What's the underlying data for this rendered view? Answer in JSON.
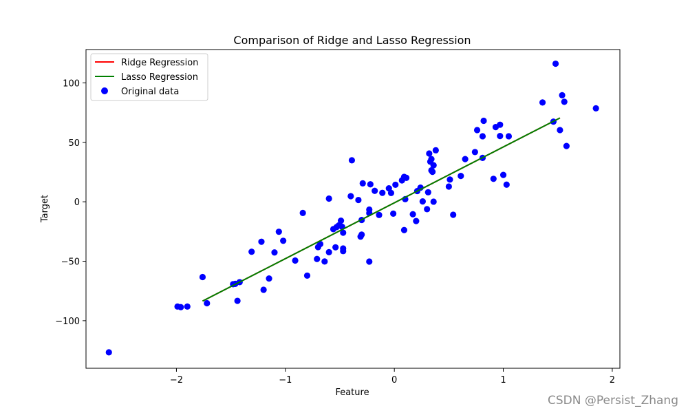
{
  "chart_data": {
    "type": "scatter",
    "title": "Comparison of Ridge and Lasso Regression",
    "xlabel": "Feature",
    "ylabel": "Target",
    "xlim": [
      -2.83,
      2.07
    ],
    "ylim": [
      -140,
      128
    ],
    "xticks": [
      -2,
      -1,
      0,
      1,
      2
    ],
    "xtick_labels": [
      "−2",
      "−1",
      "0",
      "1",
      "2"
    ],
    "yticks": [
      -100,
      -50,
      0,
      50,
      100
    ],
    "ytick_labels": [
      "−100",
      "−50",
      "0",
      "50",
      "100"
    ],
    "grid": false,
    "legend_position": "top-left",
    "series": [
      {
        "name": "Ridge Regression",
        "kind": "line",
        "color": "#ff0000",
        "x": [
          -1.76,
          1.52
        ],
        "y": [
          -83.5,
          70.5
        ]
      },
      {
        "name": "Lasso Regression",
        "kind": "line",
        "color": "#008000",
        "x": [
          -1.76,
          1.52
        ],
        "y": [
          -83.5,
          70.5
        ]
      },
      {
        "name": "Original data",
        "kind": "scatter",
        "color": "#0000ff",
        "points": [
          [
            -2.62,
            -126.6
          ],
          [
            -1.99,
            -88.1
          ],
          [
            -1.96,
            -88.6
          ],
          [
            -1.9,
            -88.1
          ],
          [
            -1.76,
            -63.3
          ],
          [
            -1.72,
            -85.3
          ],
          [
            -1.48,
            -69.3
          ],
          [
            -1.46,
            -69.0
          ],
          [
            -1.44,
            -83.3
          ],
          [
            -1.42,
            -67.6
          ],
          [
            -1.31,
            -42.0
          ],
          [
            -1.22,
            -33.6
          ],
          [
            -1.2,
            -74.0
          ],
          [
            -1.15,
            -64.5
          ],
          [
            -1.1,
            -42.6
          ],
          [
            -1.06,
            -25.2
          ],
          [
            -1.02,
            -32.8
          ],
          [
            -0.91,
            -49.4
          ],
          [
            -0.84,
            -9.4
          ],
          [
            -0.8,
            -62.1
          ],
          [
            -0.71,
            -48.1
          ],
          [
            -0.7,
            -38.1
          ],
          [
            -0.68,
            -35.5
          ],
          [
            -0.64,
            -50.2
          ],
          [
            -0.6,
            -42.4
          ],
          [
            -0.6,
            2.7
          ],
          [
            -0.56,
            -23.0
          ],
          [
            -0.54,
            -38.3
          ],
          [
            -0.53,
            -21.3
          ],
          [
            -0.51,
            -19.9
          ],
          [
            -0.49,
            -15.9
          ],
          [
            -0.48,
            -21.0
          ],
          [
            -0.47,
            -26.0
          ],
          [
            -0.47,
            -39.3
          ],
          [
            -0.47,
            -41.5
          ],
          [
            -0.4,
            4.7
          ],
          [
            -0.39,
            34.9
          ],
          [
            -0.33,
            1.5
          ],
          [
            -0.31,
            -29.3
          ],
          [
            -0.3,
            -27.6
          ],
          [
            -0.3,
            -15.3
          ],
          [
            -0.29,
            15.5
          ],
          [
            -0.23,
            -50.3
          ],
          [
            -0.23,
            -6.6
          ],
          [
            -0.23,
            -9.5
          ],
          [
            -0.22,
            14.7
          ],
          [
            -0.18,
            9.2
          ],
          [
            -0.14,
            -11.1
          ],
          [
            -0.11,
            7.5
          ],
          [
            -0.05,
            11.3
          ],
          [
            -0.03,
            7.4
          ],
          [
            -0.01,
            -10.0
          ],
          [
            0.01,
            14.3
          ],
          [
            0.07,
            18.0
          ],
          [
            0.09,
            20.9
          ],
          [
            0.09,
            -23.8
          ],
          [
            0.1,
            2.2
          ],
          [
            0.11,
            20.1
          ],
          [
            0.17,
            -10.5
          ],
          [
            0.2,
            -16.2
          ],
          [
            0.21,
            9.0
          ],
          [
            0.24,
            11.9
          ],
          [
            0.26,
            0.3
          ],
          [
            0.3,
            -6.2
          ],
          [
            0.31,
            8.0
          ],
          [
            0.32,
            40.6
          ],
          [
            0.33,
            33.7
          ],
          [
            0.34,
            35.9
          ],
          [
            0.34,
            26.4
          ],
          [
            0.35,
            25.2
          ],
          [
            0.36,
            30.7
          ],
          [
            0.36,
            0.1
          ],
          [
            0.38,
            43.3
          ],
          [
            0.5,
            12.8
          ],
          [
            0.51,
            18.7
          ],
          [
            0.54,
            -10.9
          ],
          [
            0.61,
            21.7
          ],
          [
            0.65,
            35.9
          ],
          [
            0.74,
            41.8
          ],
          [
            0.76,
            60.3
          ],
          [
            0.81,
            36.9
          ],
          [
            0.81,
            55.1
          ],
          [
            0.82,
            68.1
          ],
          [
            0.91,
            19.3
          ],
          [
            0.93,
            62.8
          ],
          [
            0.97,
            64.8
          ],
          [
            0.97,
            55.3
          ],
          [
            1.0,
            22.6
          ],
          [
            1.03,
            14.4
          ],
          [
            1.05,
            55.1
          ],
          [
            1.36,
            83.5
          ],
          [
            1.46,
            67.4
          ],
          [
            1.48,
            116.1
          ],
          [
            1.52,
            60.3
          ],
          [
            1.54,
            89.6
          ],
          [
            1.56,
            84.1
          ],
          [
            1.58,
            46.9
          ],
          [
            1.85,
            78.6
          ]
        ]
      }
    ]
  },
  "watermark": "CSDN @Persist_Zhang"
}
